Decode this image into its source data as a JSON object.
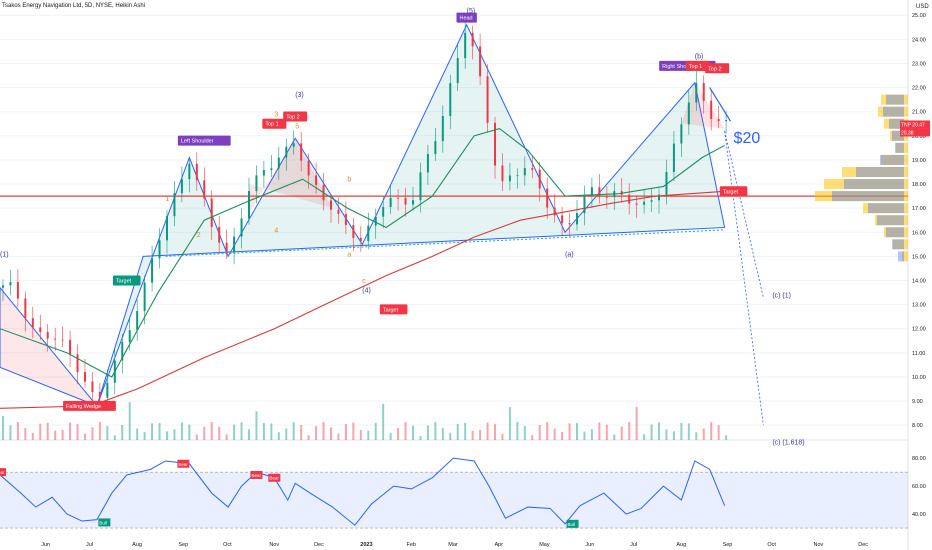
{
  "header": {
    "title": "Tsakos Energy Navigation Ltd, 5D, NYSE, Heikin Ashi",
    "currency": "USD"
  },
  "chart_data": [
    {
      "type": "candlestick",
      "title": "Tsakos Energy Navigation Ltd, 5D, NYSE, Heikin Ashi",
      "xlabel": "",
      "ylabel": "",
      "x_ticks": [
        "Jun",
        "Jul",
        "Aug",
        "Sep",
        "Oct",
        "Nov",
        "Dec",
        "2023",
        "Feb",
        "Mar",
        "Apr",
        "May",
        "Jun",
        "Jul",
        "Aug",
        "Sep",
        "Oct",
        "Nov",
        "Dec"
      ],
      "y_ticks": [
        "25.00",
        "24.00",
        "23.00",
        "22.00",
        "21.00",
        "20.00",
        "19.00",
        "18.00",
        "17.00",
        "16.00",
        "15.00",
        "14.00",
        "13.00",
        "12.00",
        "11.00",
        "10.00",
        "9.00",
        "8.00"
      ],
      "ylim": [
        7.8,
        25.3
      ],
      "price_anchors": [
        {
          "date": "2022-05-10",
          "price": 13.7
        },
        {
          "date": "2022-05-25",
          "price": 11.8
        },
        {
          "date": "2022-06-10",
          "price": 11.5
        },
        {
          "date": "2022-06-25",
          "price": 10.2
        },
        {
          "date": "2022-07-05",
          "price": 8.8
        },
        {
          "date": "2022-07-20",
          "price": 11.0
        },
        {
          "date": "2022-08-05",
          "price": 13.6
        },
        {
          "date": "2022-08-20",
          "price": 16.5
        },
        {
          "date": "2022-09-05",
          "price": 19.1
        },
        {
          "date": "2022-09-20",
          "price": 16.2
        },
        {
          "date": "2022-10-01",
          "price": 15.0
        },
        {
          "date": "2022-10-15",
          "price": 17.8
        },
        {
          "date": "2022-11-01",
          "price": 18.9
        },
        {
          "date": "2022-11-15",
          "price": 19.9
        },
        {
          "date": "2022-11-25",
          "price": 18.0
        },
        {
          "date": "2022-12-10",
          "price": 17.0
        },
        {
          "date": "2022-12-30",
          "price": 15.5
        },
        {
          "date": "2023-01-15",
          "price": 17.5
        },
        {
          "date": "2023-02-01",
          "price": 17.2
        },
        {
          "date": "2023-02-20",
          "price": 20.5
        },
        {
          "date": "2023-03-10",
          "price": 24.6
        },
        {
          "date": "2023-03-20",
          "price": 22.0
        },
        {
          "date": "2023-04-01",
          "price": 18.0
        },
        {
          "date": "2023-04-20",
          "price": 18.7
        },
        {
          "date": "2023-05-15",
          "price": 16.0
        },
        {
          "date": "2023-06-01",
          "price": 17.8
        },
        {
          "date": "2023-06-20",
          "price": 17.5
        },
        {
          "date": "2023-07-05",
          "price": 17.0
        },
        {
          "date": "2023-07-20",
          "price": 18.0
        },
        {
          "date": "2023-08-01",
          "price": 20.5
        },
        {
          "date": "2023-08-10",
          "price": 22.2
        },
        {
          "date": "2023-08-20",
          "price": 21.0
        },
        {
          "date": "2023-08-30",
          "price": 20.4
        }
      ],
      "last_price_labels": [
        {
          "ticker": "TNP",
          "value": "20.47"
        },
        {
          "ticker": "",
          "value": "20.38"
        }
      ],
      "moving_averages": [
        {
          "name": "green-ma",
          "color": "#1f8f5a",
          "points": [
            [
              "2022-05-01",
              12.0
            ],
            [
              "2022-06-15",
              11.0
            ],
            [
              "2022-07-15",
              10.0
            ],
            [
              "2022-08-15",
              13.5
            ],
            [
              "2022-09-15",
              16.5
            ],
            [
              "2022-10-15",
              17.3
            ],
            [
              "2022-11-20",
              18.2
            ],
            [
              "2022-12-20",
              17.0
            ],
            [
              "2023-01-15",
              16.2
            ],
            [
              "2023-02-15",
              17.5
            ],
            [
              "2023-03-15",
              20.0
            ],
            [
              "2023-04-01",
              20.3
            ],
            [
              "2023-04-20",
              19.4
            ],
            [
              "2023-05-15",
              17.5
            ],
            [
              "2023-06-20",
              17.6
            ],
            [
              "2023-07-20",
              17.9
            ],
            [
              "2023-08-15",
              19.1
            ],
            [
              "2023-08-30",
              19.6
            ]
          ]
        },
        {
          "name": "red-ma",
          "color": "#d63b3b",
          "points": [
            [
              "2022-05-01",
              8.7
            ],
            [
              "2022-07-01",
              8.8
            ],
            [
              "2022-08-01",
              9.5
            ],
            [
              "2022-09-15",
              10.8
            ],
            [
              "2022-11-01",
              12.0
            ],
            [
              "2022-12-15",
              13.3
            ],
            [
              "2023-01-15",
              14.2
            ],
            [
              "2023-02-15",
              15.0
            ],
            [
              "2023-03-15",
              15.8
            ],
            [
              "2023-04-15",
              16.5
            ],
            [
              "2023-06-15",
              17.2
            ],
            [
              "2023-07-15",
              17.5
            ],
            [
              "2023-08-30",
              17.7
            ]
          ]
        }
      ],
      "horizontal_line": {
        "value": 17.5,
        "color": "#e04040"
      },
      "annotations": [
        {
          "text": "(5)",
          "date": "2023-03-10",
          "price": 25.1,
          "color": "#3a3aa0"
        },
        {
          "text": "Head",
          "date": "2023-03-10",
          "price": 24.9,
          "style": "tag-purple"
        },
        {
          "text": "Left Shoulder",
          "date": "2022-09-15",
          "price": 19.8,
          "style": "tag-purple"
        },
        {
          "text": "(3)",
          "date": "2022-11-15",
          "price": 21.6,
          "color": "#3a3aa0"
        },
        {
          "text": "Top 1",
          "date": "2022-11-01",
          "price": 20.5,
          "style": "tag-red"
        },
        {
          "text": "Top 2",
          "date": "2022-11-15",
          "price": 20.8,
          "style": "tag-red"
        },
        {
          "text": "3",
          "date": "2022-11-01",
          "price": 20.8,
          "color": "#e08a1e"
        },
        {
          "text": "5",
          "date": "2022-11-15",
          "price": 20.3,
          "color": "#e08a1e"
        },
        {
          "text": "1",
          "date": "2022-08-20",
          "price": 17.3,
          "color": "#e08a1e"
        },
        {
          "text": "2",
          "date": "2022-09-10",
          "price": 15.8,
          "color": "#e08a1e"
        },
        {
          "text": "4",
          "date": "2022-11-01",
          "price": 16.0,
          "color": "#e08a1e"
        },
        {
          "text": "b",
          "date": "2022-12-20",
          "price": 18.1,
          "color": "#e08a1e"
        },
        {
          "text": "a",
          "date": "2022-12-20",
          "price": 15.0,
          "color": "#e08a1e"
        },
        {
          "text": "c",
          "date": "2022-12-30",
          "price": 13.9,
          "color": "#e08a1e"
        },
        {
          "text": "(4)",
          "date": "2022-12-30",
          "price": 13.5,
          "color": "#3a3aa0"
        },
        {
          "text": "Target",
          "date": "2023-01-20",
          "price": 12.8,
          "style": "tag-red"
        },
        {
          "text": "Target",
          "date": "2022-07-25",
          "price": 14.0,
          "style": "tag-green"
        },
        {
          "text": "(1)",
          "date": "2022-05-01",
          "price": 15.0,
          "color": "#3a3aa0"
        },
        {
          "text": "Falling Wedge",
          "date": "2022-06-30",
          "price": 8.8,
          "style": "tag-red"
        },
        {
          "text": "(a)",
          "date": "2023-05-15",
          "price": 15.0,
          "color": "#3a3aa0"
        },
        {
          "text": "(b)",
          "date": "2023-08-10",
          "price": 23.2,
          "color": "#3a3aa0"
        },
        {
          "text": "Right Shoulder",
          "date": "2023-08-05",
          "price": 22.9,
          "style": "tag-purple"
        },
        {
          "text": "Top 1",
          "date": "2023-08-12",
          "price": 22.9,
          "style": "tag-red"
        },
        {
          "text": "Top 2",
          "date": "2023-08-25",
          "price": 22.8,
          "style": "tag-red"
        },
        {
          "text": "$20",
          "date": "2023-09-05",
          "price": 19.7,
          "color": "#2962ff"
        },
        {
          "text": "Target",
          "date": "2023-09-05",
          "price": 17.7,
          "style": "tag-red"
        },
        {
          "text": "(c) (1)",
          "date": "2023-10-01",
          "price": 13.3,
          "color": "#3a3aa0"
        },
        {
          "text": "(c) (1.618)",
          "date": "2023-10-01",
          "price": 7.2,
          "color": "#3a3aa0"
        }
      ],
      "volume_profile": [
        {
          "price": 21.5,
          "buy": 30,
          "sell": 45
        },
        {
          "price": 21.0,
          "buy": 35,
          "sell": 50
        },
        {
          "price": 20.5,
          "buy": 25,
          "sell": 40
        },
        {
          "price": 20.0,
          "buy": 20,
          "sell": 30
        },
        {
          "price": 19.5,
          "buy": 15,
          "sell": 20
        },
        {
          "price": 19.0,
          "buy": 40,
          "sell": 45
        },
        {
          "price": 18.5,
          "buy": 80,
          "sell": 110
        },
        {
          "price": 18.0,
          "buy": 100,
          "sell": 140
        },
        {
          "price": 17.5,
          "buy": 120,
          "sell": 155
        },
        {
          "price": 17.0,
          "buy": 60,
          "sell": 75
        },
        {
          "price": 16.5,
          "buy": 45,
          "sell": 55
        },
        {
          "price": 16.0,
          "buy": 30,
          "sell": 40
        },
        {
          "price": 15.5,
          "buy": 20,
          "sell": 25
        },
        {
          "price": 15.0,
          "buy": 10,
          "sell": 10
        }
      ]
    },
    {
      "type": "line",
      "title": "",
      "y_ticks": [
        "80.00",
        "60.00",
        "40.00"
      ],
      "ylim": [
        25,
        88
      ],
      "band": [
        30,
        70
      ],
      "series": [
        {
          "color": "#2962ff",
          "points": [
            [
              "2022-05-01",
              68
            ],
            [
              "2022-05-15",
              55
            ],
            [
              "2022-05-25",
              45
            ],
            [
              "2022-06-05",
              52
            ],
            [
              "2022-06-15",
              40
            ],
            [
              "2022-06-25",
              35
            ],
            [
              "2022-07-05",
              36
            ],
            [
              "2022-07-15",
              55
            ],
            [
              "2022-07-25",
              68
            ],
            [
              "2022-08-10",
              72
            ],
            [
              "2022-08-20",
              78
            ],
            [
              "2022-09-05",
              76
            ],
            [
              "2022-09-20",
              55
            ],
            [
              "2022-10-01",
              45
            ],
            [
              "2022-10-10",
              60
            ],
            [
              "2022-10-20",
              70
            ],
            [
              "2022-11-01",
              66
            ],
            [
              "2022-11-10",
              50
            ],
            [
              "2022-11-15",
              62
            ],
            [
              "2022-11-25",
              55
            ],
            [
              "2022-12-10",
              45
            ],
            [
              "2022-12-25",
              32
            ],
            [
              "2023-01-05",
              47
            ],
            [
              "2023-01-20",
              60
            ],
            [
              "2023-02-01",
              58
            ],
            [
              "2023-02-15",
              66
            ],
            [
              "2023-03-01",
              80
            ],
            [
              "2023-03-15",
              78
            ],
            [
              "2023-03-25",
              60
            ],
            [
              "2023-04-05",
              37
            ],
            [
              "2023-04-20",
              45
            ],
            [
              "2023-05-05",
              44
            ],
            [
              "2023-05-15",
              33
            ],
            [
              "2023-05-25",
              46
            ],
            [
              "2023-06-10",
              55
            ],
            [
              "2023-06-25",
              40
            ],
            [
              "2023-07-05",
              44
            ],
            [
              "2023-07-20",
              60
            ],
            [
              "2023-08-01",
              50
            ],
            [
              "2023-08-10",
              78
            ],
            [
              "2023-08-20",
              72
            ],
            [
              "2023-08-30",
              46
            ]
          ]
        }
      ]
    }
  ],
  "labels": {
    "bear": "Bear",
    "bull": "Bull"
  }
}
